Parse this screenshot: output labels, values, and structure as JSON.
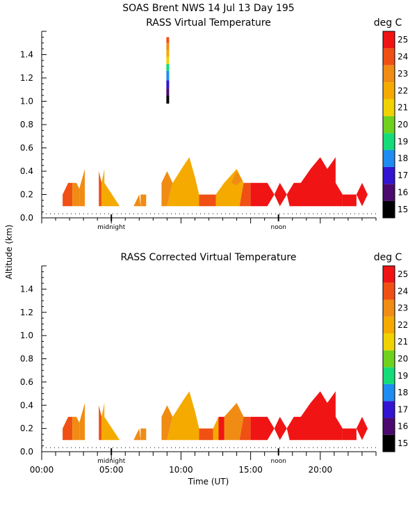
{
  "figure_title": "SOAS Brent NWS  14 Jul 13 Day 195",
  "y_axis_label": "Altitude (km)",
  "x_axis_label": "Time (UT)",
  "x_ticks": [
    "00:00",
    "05:00",
    "10:00",
    "15:00",
    "20:00"
  ],
  "day_markers": [
    "midnight",
    "noon"
  ],
  "colorbar": {
    "unit": "deg C",
    "levels": [
      15,
      16,
      17,
      18,
      19,
      20,
      21,
      22,
      23,
      24,
      25
    ],
    "colors": [
      "#000000",
      "#4b0a6e",
      "#3214d2",
      "#1e8cf0",
      "#14dc78",
      "#6ed21e",
      "#f0d200",
      "#f5aa00",
      "#f08c14",
      "#f05014",
      "#f01414"
    ]
  },
  "chart_data": [
    {
      "type": "heatmap",
      "title": "RASS Virtual Temperature",
      "xlabel": "Time (UT)",
      "ylabel": "Altitude (km)",
      "xlim": [
        0,
        24
      ],
      "ylim": [
        0,
        1.6
      ],
      "y_ticks": [
        0.0,
        0.2,
        0.4,
        0.6,
        0.8,
        1.0,
        1.2,
        1.4
      ],
      "y_tick_labels": [
        "0.0",
        "0.2",
        "0.4",
        "0.6",
        "0.8",
        "1.0",
        "1.2",
        "1.4"
      ],
      "patches": [
        {
          "temp": 24,
          "points": [
            [
              1.5,
              0.1
            ],
            [
              1.5,
              0.2
            ],
            [
              1.9,
              0.3
            ],
            [
              2.2,
              0.3
            ],
            [
              2.2,
              0.1
            ]
          ]
        },
        {
          "temp": 23,
          "points": [
            [
              2.2,
              0.1
            ],
            [
              2.2,
              0.3
            ],
            [
              2.5,
              0.3
            ],
            [
              2.7,
              0.25
            ],
            [
              2.7,
              0.1
            ]
          ]
        },
        {
          "temp": 23,
          "points": [
            [
              2.7,
              0.1
            ],
            [
              2.7,
              0.25
            ],
            [
              3.1,
              0.42
            ],
            [
              3.1,
              0.1
            ]
          ]
        },
        {
          "temp": 24,
          "points": [
            [
              4.1,
              0.1
            ],
            [
              4.1,
              0.4
            ],
            [
              4.3,
              0.3
            ],
            [
              4.3,
              0.1
            ]
          ]
        },
        {
          "temp": 22,
          "points": [
            [
              4.3,
              0.1
            ],
            [
              4.3,
              0.3
            ],
            [
              4.5,
              0.42
            ],
            [
              4.5,
              0.3
            ],
            [
              5.6,
              0.1
            ]
          ]
        },
        {
          "temp": 23,
          "points": [
            [
              6.6,
              0.1
            ],
            [
              7.0,
              0.2
            ],
            [
              7.1,
              0.1
            ]
          ]
        },
        {
          "temp": 23,
          "points": [
            [
              7.1,
              0.1
            ],
            [
              7.1,
              0.2
            ],
            [
              7.5,
              0.2
            ],
            [
              7.5,
              0.1
            ]
          ]
        },
        {
          "temp": 23,
          "points": [
            [
              8.6,
              0.1
            ],
            [
              8.6,
              0.3
            ],
            [
              9.0,
              0.4
            ],
            [
              9.4,
              0.3
            ],
            [
              9.0,
              0.1
            ]
          ]
        },
        {
          "temp": 22,
          "points": [
            [
              9.0,
              0.1
            ],
            [
              9.4,
              0.3
            ],
            [
              10.2,
              0.45
            ],
            [
              10.6,
              0.52
            ],
            [
              11.0,
              0.35
            ],
            [
              11.3,
              0.2
            ],
            [
              11.3,
              0.1
            ]
          ]
        },
        {
          "temp": 24,
          "points": [
            [
              11.3,
              0.1
            ],
            [
              11.3,
              0.2
            ],
            [
              12.5,
              0.2
            ],
            [
              12.5,
              0.1
            ]
          ]
        },
        {
          "temp": 22,
          "points": [
            [
              12.5,
              0.1
            ],
            [
              12.5,
              0.2
            ],
            [
              13.1,
              0.3
            ],
            [
              14.0,
              0.42
            ],
            [
              14.5,
              0.3
            ],
            [
              14.2,
              0.1
            ]
          ]
        },
        {
          "temp": 23,
          "points": [
            [
              13.6,
              0.3
            ],
            [
              14.0,
              0.4
            ],
            [
              14.4,
              0.32
            ],
            [
              14.0,
              0.28
            ]
          ]
        },
        {
          "temp": 24,
          "points": [
            [
              14.2,
              0.1
            ],
            [
              14.5,
              0.3
            ],
            [
              15.0,
              0.3
            ],
            [
              15.0,
              0.1
            ]
          ]
        },
        {
          "temp": 25,
          "points": [
            [
              15.0,
              0.1
            ],
            [
              15.0,
              0.3
            ],
            [
              16.2,
              0.3
            ],
            [
              16.7,
              0.2
            ],
            [
              16.2,
              0.1
            ]
          ]
        },
        {
          "temp": 25,
          "points": [
            [
              16.7,
              0.2
            ],
            [
              17.1,
              0.3
            ],
            [
              17.6,
              0.2
            ],
            [
              17.1,
              0.1
            ]
          ]
        },
        {
          "temp": 25,
          "points": [
            [
              17.6,
              0.2
            ],
            [
              18.1,
              0.3
            ],
            [
              18.6,
              0.3
            ],
            [
              19.3,
              0.42
            ],
            [
              20.0,
              0.52
            ],
            [
              20.5,
              0.42
            ],
            [
              21.1,
              0.52
            ],
            [
              21.1,
              0.3
            ],
            [
              21.6,
              0.2
            ],
            [
              21.6,
              0.1
            ],
            [
              17.8,
              0.1
            ]
          ]
        },
        {
          "temp": 25,
          "points": [
            [
              21.6,
              0.1
            ],
            [
              21.6,
              0.2
            ],
            [
              22.6,
              0.2
            ],
            [
              22.6,
              0.1
            ]
          ]
        },
        {
          "temp": 25,
          "points": [
            [
              22.6,
              0.2
            ],
            [
              23.0,
              0.3
            ],
            [
              23.4,
              0.2
            ],
            [
              23.0,
              0.1
            ]
          ]
        }
      ],
      "column": {
        "x": [
          8.95,
          9.15
        ],
        "stops": [
          {
            "y0": 0.98,
            "y1": 1.05,
            "temp": 15
          },
          {
            "y0": 1.05,
            "y1": 1.11,
            "temp": 16
          },
          {
            "y0": 1.11,
            "y1": 1.18,
            "temp": 17
          },
          {
            "y0": 1.18,
            "y1": 1.26,
            "temp": 18
          },
          {
            "y0": 1.26,
            "y1": 1.32,
            "temp": 19
          },
          {
            "y0": 1.32,
            "y1": 1.38,
            "temp": 21
          },
          {
            "y0": 1.38,
            "y1": 1.44,
            "temp": 22
          },
          {
            "y0": 1.44,
            "y1": 1.5,
            "temp": 23
          },
          {
            "y0": 1.5,
            "y1": 1.55,
            "temp": 24
          }
        ]
      }
    },
    {
      "type": "heatmap",
      "title": "RASS Corrected Virtual Temperature",
      "xlabel": "Time (UT)",
      "ylabel": "Altitude (km)",
      "xlim": [
        0,
        24
      ],
      "ylim": [
        0,
        1.6
      ],
      "y_ticks": [
        0.0,
        0.2,
        0.4,
        0.6,
        0.8,
        1.0,
        1.2,
        1.4
      ],
      "y_tick_labels": [
        "0.0",
        "0.2",
        "0.4",
        "0.6",
        "0.8",
        "1.0",
        "1.2",
        "1.4"
      ],
      "patches": [
        {
          "temp": 24,
          "points": [
            [
              1.5,
              0.1
            ],
            [
              1.5,
              0.2
            ],
            [
              1.9,
              0.3
            ],
            [
              2.2,
              0.3
            ],
            [
              2.2,
              0.1
            ]
          ]
        },
        {
          "temp": 23,
          "points": [
            [
              2.2,
              0.1
            ],
            [
              2.2,
              0.3
            ],
            [
              2.5,
              0.3
            ],
            [
              2.7,
              0.25
            ],
            [
              2.7,
              0.1
            ]
          ]
        },
        {
          "temp": 23,
          "points": [
            [
              2.7,
              0.1
            ],
            [
              2.7,
              0.25
            ],
            [
              3.1,
              0.42
            ],
            [
              3.1,
              0.1
            ]
          ]
        },
        {
          "temp": 24,
          "points": [
            [
              4.1,
              0.1
            ],
            [
              4.1,
              0.4
            ],
            [
              4.3,
              0.3
            ],
            [
              4.3,
              0.1
            ]
          ]
        },
        {
          "temp": 22,
          "points": [
            [
              4.3,
              0.1
            ],
            [
              4.3,
              0.3
            ],
            [
              4.5,
              0.42
            ],
            [
              4.5,
              0.3
            ],
            [
              5.6,
              0.1
            ]
          ]
        },
        {
          "temp": 23,
          "points": [
            [
              6.6,
              0.1
            ],
            [
              7.0,
              0.2
            ],
            [
              7.1,
              0.1
            ]
          ]
        },
        {
          "temp": 23,
          "points": [
            [
              7.1,
              0.1
            ],
            [
              7.1,
              0.2
            ],
            [
              7.5,
              0.2
            ],
            [
              7.5,
              0.1
            ]
          ]
        },
        {
          "temp": 23,
          "points": [
            [
              8.6,
              0.1
            ],
            [
              8.6,
              0.3
            ],
            [
              9.0,
              0.4
            ],
            [
              9.4,
              0.3
            ],
            [
              9.0,
              0.1
            ]
          ]
        },
        {
          "temp": 22,
          "points": [
            [
              9.0,
              0.1
            ],
            [
              9.4,
              0.3
            ],
            [
              10.2,
              0.45
            ],
            [
              10.6,
              0.52
            ],
            [
              11.0,
              0.35
            ],
            [
              11.3,
              0.2
            ],
            [
              11.3,
              0.1
            ]
          ]
        },
        {
          "temp": 24,
          "points": [
            [
              11.3,
              0.1
            ],
            [
              11.3,
              0.2
            ],
            [
              12.3,
              0.2
            ],
            [
              12.3,
              0.1
            ]
          ]
        },
        {
          "temp": 22,
          "points": [
            [
              12.3,
              0.1
            ],
            [
              12.3,
              0.2
            ],
            [
              12.7,
              0.3
            ],
            [
              12.7,
              0.1
            ]
          ]
        },
        {
          "temp": 25,
          "points": [
            [
              12.7,
              0.1
            ],
            [
              12.7,
              0.3
            ],
            [
              13.1,
              0.3
            ],
            [
              13.1,
              0.1
            ]
          ]
        },
        {
          "temp": 23,
          "points": [
            [
              13.1,
              0.1
            ],
            [
              13.1,
              0.3
            ],
            [
              14.0,
              0.42
            ],
            [
              14.5,
              0.3
            ],
            [
              14.2,
              0.1
            ]
          ]
        },
        {
          "temp": 24,
          "points": [
            [
              14.2,
              0.1
            ],
            [
              14.5,
              0.3
            ],
            [
              15.0,
              0.3
            ],
            [
              15.0,
              0.1
            ]
          ]
        },
        {
          "temp": 25,
          "points": [
            [
              15.0,
              0.1
            ],
            [
              15.0,
              0.3
            ],
            [
              16.2,
              0.3
            ],
            [
              16.7,
              0.2
            ],
            [
              16.2,
              0.1
            ]
          ]
        },
        {
          "temp": 25,
          "points": [
            [
              16.7,
              0.2
            ],
            [
              17.1,
              0.3
            ],
            [
              17.6,
              0.2
            ],
            [
              17.1,
              0.1
            ]
          ]
        },
        {
          "temp": 25,
          "points": [
            [
              17.6,
              0.2
            ],
            [
              18.1,
              0.3
            ],
            [
              18.6,
              0.3
            ],
            [
              19.3,
              0.42
            ],
            [
              20.0,
              0.52
            ],
            [
              20.5,
              0.42
            ],
            [
              21.1,
              0.52
            ],
            [
              21.1,
              0.3
            ],
            [
              21.6,
              0.2
            ],
            [
              21.6,
              0.1
            ],
            [
              17.8,
              0.1
            ]
          ]
        },
        {
          "temp": 25,
          "points": [
            [
              21.6,
              0.1
            ],
            [
              21.6,
              0.2
            ],
            [
              22.6,
              0.2
            ],
            [
              22.6,
              0.1
            ]
          ]
        },
        {
          "temp": 25,
          "points": [
            [
              22.6,
              0.2
            ],
            [
              23.0,
              0.3
            ],
            [
              23.4,
              0.2
            ],
            [
              23.0,
              0.1
            ]
          ]
        }
      ]
    }
  ]
}
